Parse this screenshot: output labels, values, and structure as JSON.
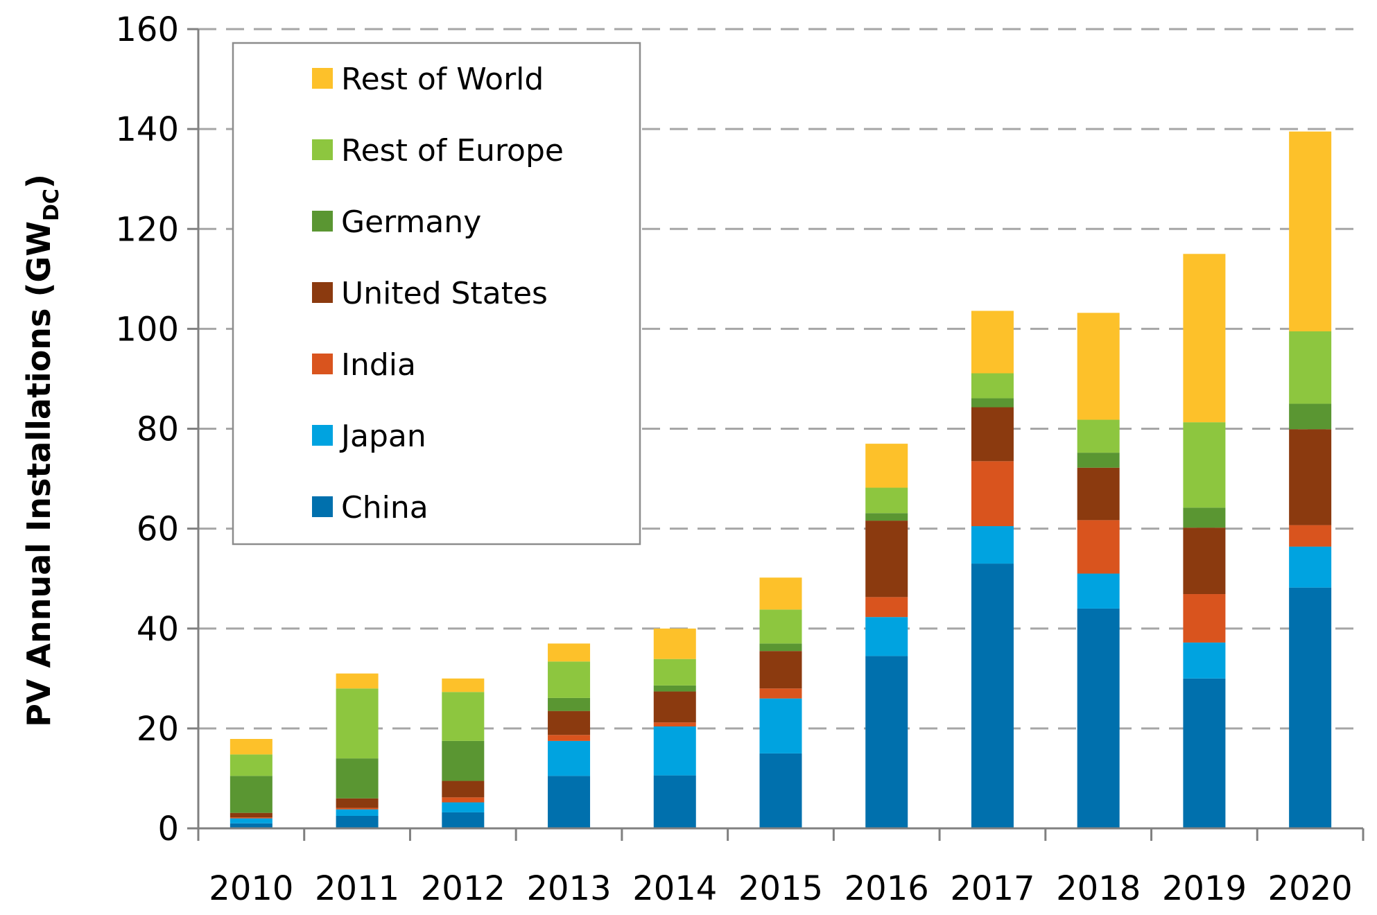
{
  "chart_data": {
    "type": "bar",
    "stacked": true,
    "title": "",
    "xlabel": "",
    "ylabel": "PV Annual Installations (GW",
    "ylabel_subscript": "DC",
    "ylabel_close": ")",
    "ylim": [
      0,
      160
    ],
    "yticks": [
      0,
      20,
      40,
      60,
      80,
      100,
      120,
      140,
      160
    ],
    "ytick_labels": [
      "0",
      "20",
      "40",
      "60",
      "80",
      "100",
      "120",
      "140",
      "160"
    ],
    "grid": "horizontal-dashed",
    "legend_position": "top-left",
    "categories": [
      "2010",
      "2011",
      "2012",
      "2013",
      "2014",
      "2015",
      "2016",
      "2017",
      "2018",
      "2019",
      "2020"
    ],
    "series": [
      {
        "name": "China",
        "color": "#0070AD",
        "values": [
          1.0,
          2.5,
          3.2,
          10.5,
          10.6,
          15.0,
          34.5,
          53.0,
          44.0,
          30.0,
          48.2
        ]
      },
      {
        "name": "Japan",
        "color": "#00A3E0",
        "values": [
          1.0,
          1.3,
          2.0,
          7.0,
          9.8,
          11.0,
          7.8,
          7.5,
          7.0,
          7.2,
          8.2
        ]
      },
      {
        "name": "India",
        "color": "#D9541E",
        "values": [
          0.2,
          0.3,
          1.0,
          1.2,
          0.8,
          2.0,
          4.0,
          13.0,
          10.7,
          9.7,
          4.3
        ]
      },
      {
        "name": "United States",
        "color": "#8B3A0F",
        "values": [
          0.9,
          1.9,
          3.3,
          4.8,
          6.2,
          7.5,
          15.3,
          10.8,
          10.5,
          13.3,
          19.2
        ]
      },
      {
        "name": "Germany",
        "color": "#5A9632",
        "values": [
          7.4,
          8.0,
          8.0,
          2.6,
          1.2,
          1.5,
          1.5,
          1.8,
          3.0,
          4.0,
          5.1
        ]
      },
      {
        "name": "Rest of Europe",
        "color": "#8DC63F",
        "values": [
          4.3,
          14.0,
          9.8,
          7.3,
          5.3,
          6.8,
          5.1,
          5.0,
          6.6,
          17.1,
          14.5
        ]
      },
      {
        "name": "Rest of World",
        "color": "#FDC12A",
        "values": [
          3.1,
          3.0,
          2.7,
          3.6,
          6.1,
          6.4,
          8.8,
          12.5,
          21.4,
          33.7,
          40.0
        ]
      }
    ],
    "legend_order": [
      "Rest of World",
      "Rest of Europe",
      "Germany",
      "United States",
      "India",
      "Japan",
      "China"
    ]
  }
}
